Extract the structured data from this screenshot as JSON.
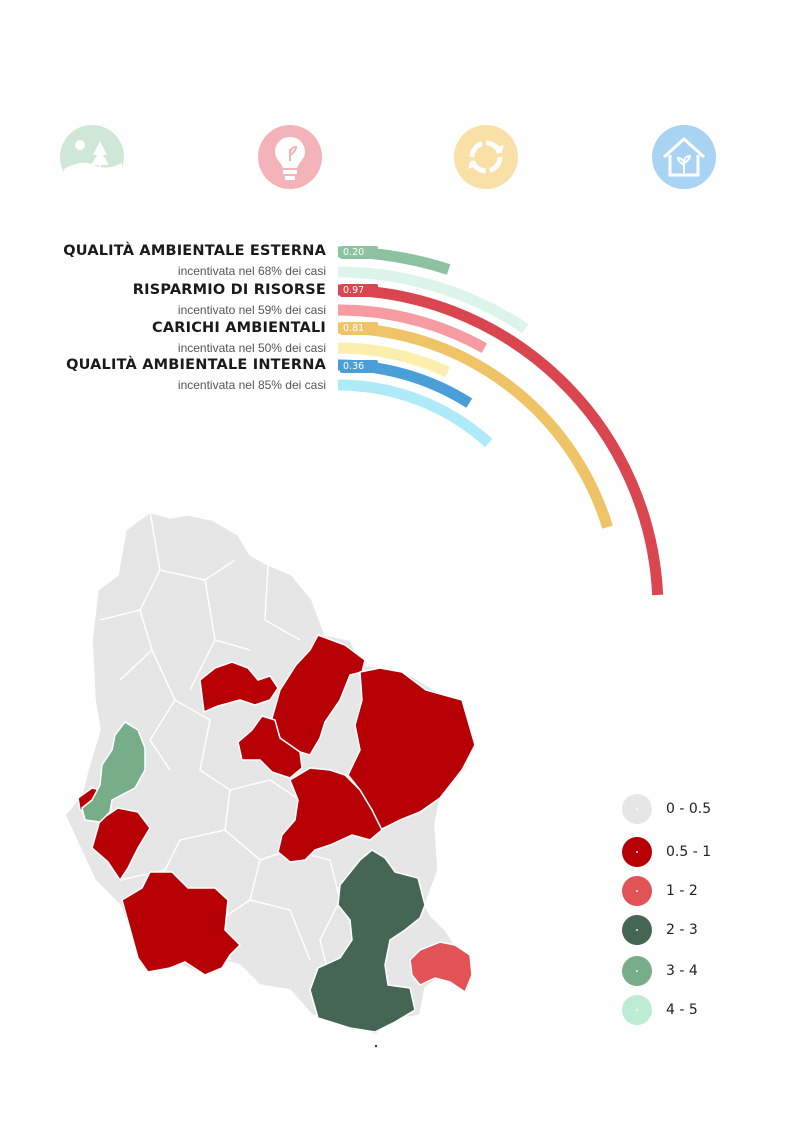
{
  "icons": [
    {
      "name": "landscape-icon",
      "color": "#cfe7d6"
    },
    {
      "name": "lightbulb-icon",
      "color": "#f3b3b8"
    },
    {
      "name": "recycle-icon",
      "color": "#f8e0a6"
    },
    {
      "name": "house-plant-icon",
      "color": "#a9d3f3"
    }
  ],
  "metrics": [
    {
      "title": "QUALITÀ AMBIENTALE ESTERNA",
      "subtitle": "incentivata nel 68% dei casi",
      "value": "0.20",
      "value_color": "#8cc2a0",
      "incentive_color": "#ddf4ea",
      "value_num": 0.2,
      "incentive_pct": 68
    },
    {
      "title": "RISPARMIO DI RISORSE",
      "subtitle": "incentivato nel 59% dei casi",
      "value": "0.97",
      "value_color": "#d9464f",
      "incentive_color": "#f69ba1",
      "value_num": 0.97,
      "incentive_pct": 59
    },
    {
      "title": "CARICHI AMBIENTALI",
      "subtitle": "incentivata nel 50% dei casi",
      "value": "0.81",
      "value_color": "#eec466",
      "incentive_color": "#fcefad",
      "value_num": 0.81,
      "incentive_pct": 50
    },
    {
      "title": "QUALITÀ AMBIENTALE INTERNA",
      "subtitle": "incentivata nel 85% dei casi",
      "value": "0.36",
      "value_color": "#4a9fd8",
      "incentive_color": "#aeeaf7",
      "value_num": 0.36,
      "incentive_pct": 85
    }
  ],
  "legend": [
    {
      "label": "0 - 0.5",
      "color": "#e6e6e6"
    },
    {
      "label": "0.5 - 1",
      "color": "#b70006"
    },
    {
      "label": "1 - 2",
      "color": "#e25357"
    },
    {
      "label": "2 - 3",
      "color": "#456654"
    },
    {
      "label": "3 - 4",
      "color": "#78ad8a"
    },
    {
      "label": "4 - 5",
      "color": "#bdebd4"
    }
  ],
  "footer_mark": "."
}
